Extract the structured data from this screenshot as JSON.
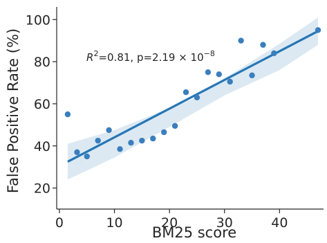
{
  "chart_data": {
    "type": "scatter",
    "xlabel": "BM25 score",
    "ylabel": "False Positive Rate (%)",
    "xlim": [
      -0.5,
      48
    ],
    "ylim": [
      10,
      106
    ],
    "xticks": [
      0,
      10,
      20,
      30,
      40
    ],
    "yticks": [
      20,
      40,
      60,
      80,
      100
    ],
    "grid": false,
    "annotation": {
      "r2_symbol": "R",
      "r2_exponent": "2",
      "r2_text": "=0.81, p=2.19 × 10",
      "p_exponent": "−8"
    },
    "points": [
      {
        "x": 1.5,
        "y": 55
      },
      {
        "x": 3.2,
        "y": 37
      },
      {
        "x": 5.0,
        "y": 35
      },
      {
        "x": 7.0,
        "y": 42.5
      },
      {
        "x": 9.0,
        "y": 47.5
      },
      {
        "x": 11.0,
        "y": 38.5
      },
      {
        "x": 13.0,
        "y": 41.5
      },
      {
        "x": 15.0,
        "y": 42.5
      },
      {
        "x": 17.0,
        "y": 43.5
      },
      {
        "x": 19.0,
        "y": 46.5
      },
      {
        "x": 21.0,
        "y": 49.5
      },
      {
        "x": 23.0,
        "y": 65.5
      },
      {
        "x": 25.0,
        "y": 63
      },
      {
        "x": 27.0,
        "y": 75
      },
      {
        "x": 29.0,
        "y": 74
      },
      {
        "x": 31.0,
        "y": 70.5
      },
      {
        "x": 33.0,
        "y": 90
      },
      {
        "x": 35.0,
        "y": 73.5
      },
      {
        "x": 37.0,
        "y": 88
      },
      {
        "x": 39.0,
        "y": 84
      },
      {
        "x": 47.0,
        "y": 95
      }
    ],
    "fit": {
      "x": [
        1.5,
        47.0
      ],
      "y": [
        32.5,
        94.5
      ]
    },
    "confidence_band": {
      "x": [
        1.5,
        10,
        20,
        24,
        30,
        40,
        47
      ],
      "upper": [
        41,
        47.5,
        58,
        62,
        72,
        88.5,
        101
      ],
      "lower": [
        24,
        34.5,
        49,
        55,
        64,
        76,
        88
      ]
    }
  }
}
